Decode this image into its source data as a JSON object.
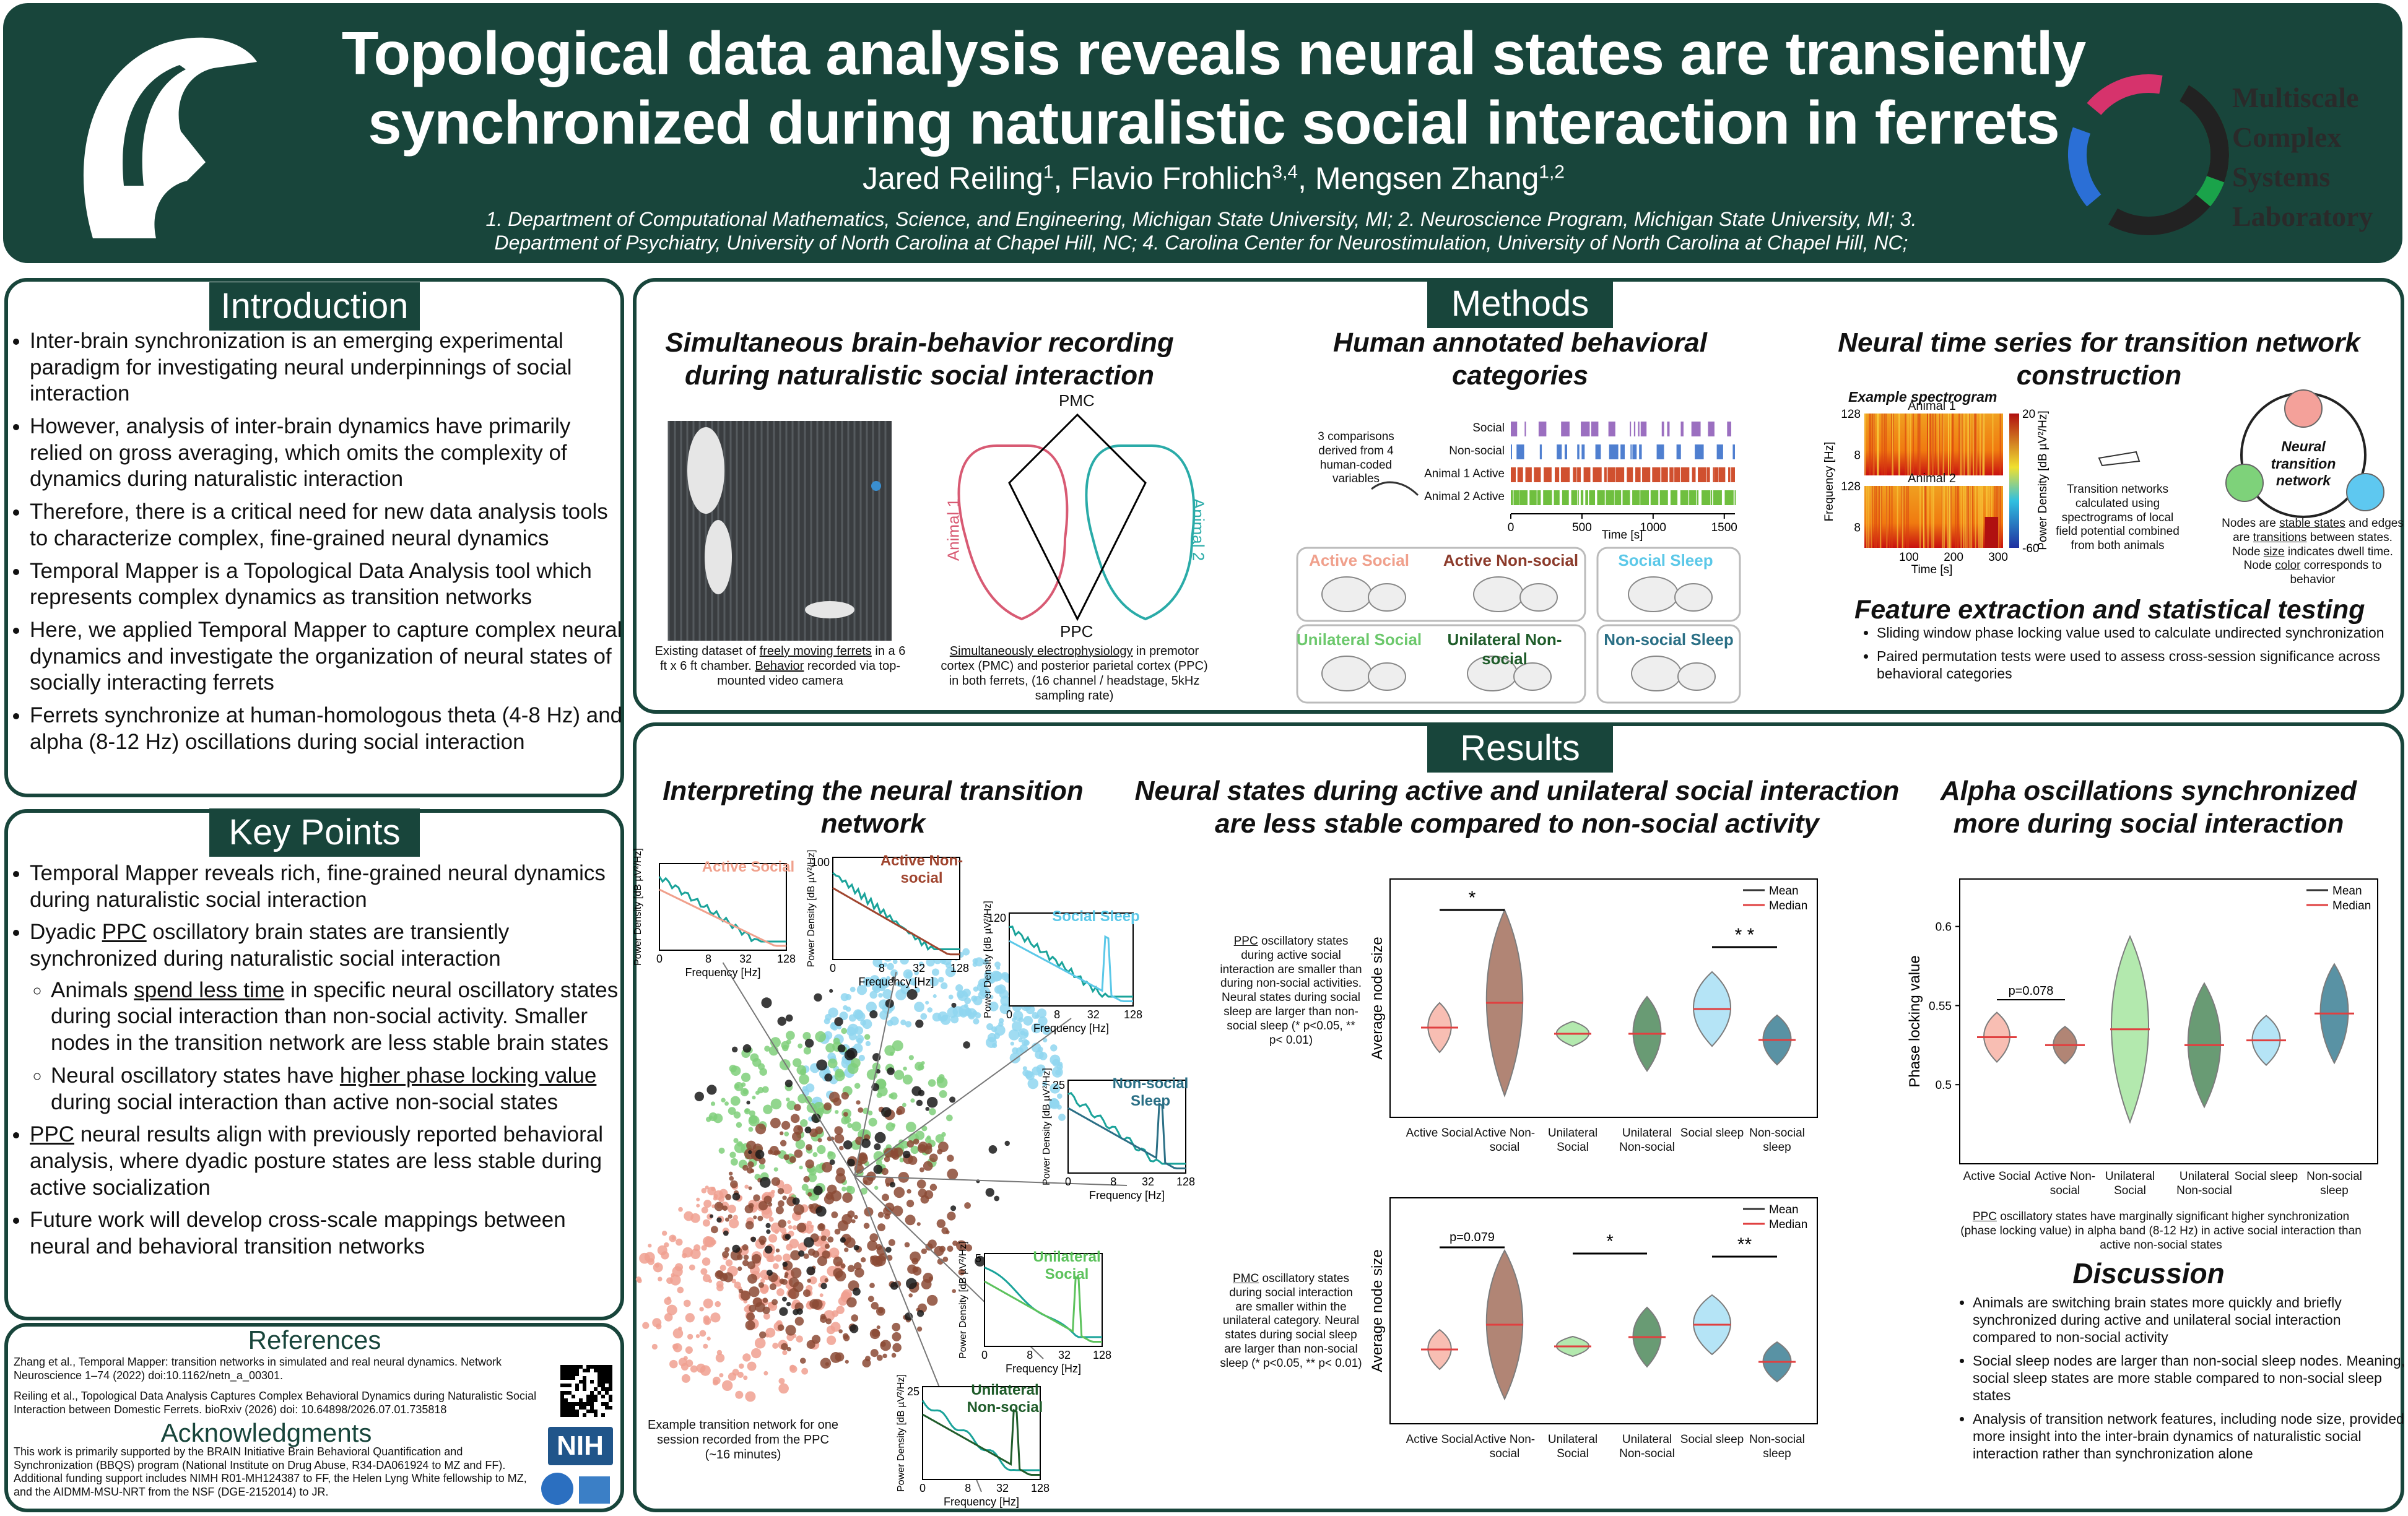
{
  "header": {
    "title_lines": [
      "Topological data analysis reveals neural states are transiently",
      "synchronized during naturalistic social interaction in ferrets"
    ],
    "authors": [
      {
        "name": "Jared Reiling",
        "sup": "1",
        "sep": ", "
      },
      {
        "name": "Flavio Frohlich",
        "sup": "3,4",
        "sep": ", "
      },
      {
        "name": "Mengsen Zhang",
        "sup": "1,2"
      }
    ],
    "affiliations": "1. Department of Computational Mathematics, Science, and Engineering, Michigan State University, MI;  2. Neuroscience Program, Michigan State University, MI; 3. Department of Psychiatry, University of North Carolina at Chapel Hill, NC; 4. Carolina Center for Neurostimulation, University of North Carolina at Chapel Hill, NC;",
    "lab": [
      "Multiscale",
      "Complex",
      "Systems",
      "Laboratory"
    ]
  },
  "introduction": {
    "heading": "Introduction",
    "bullets": [
      "Inter-brain synchronization is an emerging experimental paradigm for investigating neural underpinnings of social interaction",
      "However, analysis of inter-brain dynamics have primarily relied on gross averaging, which omits the complexity of dynamics during naturalistic interaction",
      "Therefore, there is a critical need for new data analysis tools to characterize complex, fine-grained neural dynamics",
      "Temporal Mapper is a Topological Data Analysis tool which represents complex dynamics as transition networks",
      "Here, we applied Temporal Mapper to capture complex neural dynamics and investigate the organization of neural states of socially interacting ferrets",
      "Ferrets synchronize at human-homologous theta (4-8 Hz) and alpha (8-12 Hz) oscillations during social interaction"
    ]
  },
  "key_points": {
    "heading": "Key Points",
    "items": [
      {
        "parts": [
          "Temporal Mapper reveals rich, fine-grained neural dynamics during naturalistic social interaction"
        ]
      },
      {
        "parts": [
          "Dyadic ",
          {
            "u": "PPC"
          },
          " oscillatory brain states are transiently synchronized during naturalistic social interaction"
        ],
        "sub": [
          [
            "Animals ",
            {
              "u": "spend less time"
            },
            " in specific neural oscillatory states during social interaction than non-social activity. Smaller nodes in the transition network are less stable brain states"
          ],
          [
            "Neural oscillatory states have ",
            {
              "u": "higher phase locking value"
            },
            " during social interaction than active non-social states"
          ]
        ]
      },
      {
        "parts": [
          {
            "u": "PPC"
          },
          " neural results align with previously reported behavioral analysis, where dyadic posture states are less stable during active socialization"
        ]
      },
      {
        "parts": [
          "Future work will develop cross-scale mappings between neural and behavioral transition networks"
        ]
      }
    ]
  },
  "references": {
    "heading": "References",
    "items": [
      "Zhang et al., Temporal Mapper: transition networks in simulated and real neural dynamics. Network Neuroscience 1–74 (2022) doi:10.1162/netn_a_00301.",
      "Reiling et al., Topological Data Analysis Captures Complex Behavioral Dynamics during Naturalistic Social Interaction between Domestic Ferrets. bioRxiv (2026) doi: 10.64898/2026.07.01.735818"
    ]
  },
  "acknowledgments": {
    "heading": "Acknowledgments",
    "text": "This work is primarily supported by the BRAIN Initiative Brain Behavioral Quantification and Synchronization (BBQS) program (National Institute on Drug Abuse, R34-DA061924 to MZ and FF). Additional funding support includes NIMH R01-MH124387 to FF, the Helen Lyng White fellowship to MZ, and the AIDMM-MSU-NRT from the NSF (DGE-2152014) to JR.",
    "logo": "NIH"
  },
  "methods": {
    "heading": "Methods",
    "recording": {
      "title": "Simultaneous brain-behavior recording during naturalistic social interaction",
      "photo_caption": [
        "Existing dataset of ",
        {
          "u": "freely moving ferrets"
        },
        " in a 6 ft x 6 ft chamber. ",
        {
          "u": "Behavior"
        },
        " recorded via top-mounted video camera"
      ],
      "brain_labels": {
        "top": "PMC",
        "bottom": "PPC",
        "left": "Animal 1",
        "right": "Animal 2"
      },
      "brain_caption": [
        {
          "u": "Simultaneously electrophysiology"
        },
        " in premotor cortex (PMC) and posterior parietal cortex (PPC) in both ferrets, (16 channel / headstage, 5kHz sampling rate)"
      ]
    },
    "behavior": {
      "title": "Human annotated behavioral categories",
      "note": "3 comparisons derived from 4 human-coded variables",
      "rows": [
        "Social",
        "Non-social",
        "Animal 1 Active",
        "Animal 2 Active"
      ],
      "row_colors": [
        "#9b6fc0",
        "#4f7fd0",
        "#d0502f",
        "#6fbf3f"
      ],
      "xlim": [
        0,
        1575
      ],
      "xticks": [
        0,
        500,
        1000,
        1500
      ],
      "xlabel": "Time [s]",
      "categories": [
        {
          "label": "Active Social",
          "color": "#f0a08c"
        },
        {
          "label": "Active Non-social",
          "color": "#8b3a2a"
        },
        {
          "label": "Social Sleep",
          "color": "#5bc8e8"
        },
        {
          "label": "Unilateral Social",
          "color": "#6cc86c"
        },
        {
          "label": "Unilateral Non-social",
          "color": "#1f5c2a"
        },
        {
          "label": "Non-social Sleep",
          "color": "#2a6f85"
        }
      ]
    },
    "timeseries": {
      "title": "Neural time series for transition network construction",
      "spectrogram_title": "Example spectrogram",
      "animals": [
        "Animal 1",
        "Animal 2"
      ],
      "ylim": [
        2,
        128
      ],
      "yticks": [
        8,
        128
      ],
      "ylabel": "Frequency [Hz]",
      "xlim": [
        0,
        311
      ],
      "xticks": [
        100,
        200,
        300
      ],
      "xlabel": "Time [s]",
      "clim": [
        -60,
        20
      ],
      "cticks": [
        -60,
        20
      ],
      "colorbar_label": "Power Density [dB µV²/Hz]",
      "transition_note": "Transition networks calculated using spectrograms of local field potential combined from both animals",
      "network_label": "Neural transition network",
      "network_caption": [
        "Nodes are ",
        {
          "u": "stable states"
        },
        " and edges are ",
        {
          "u": "transitions"
        },
        " between states. Node ",
        {
          "u": "size"
        },
        " indicates dwell time. Node ",
        {
          "u": "color"
        },
        " corresponds to behavior"
      ]
    },
    "features": {
      "title": "Feature extraction and statistical testing",
      "bullets": [
        "Sliding window phase locking value used to calculate undirected synchronization",
        "Paired permutation tests were used to assess cross-session significance across behavioral categories"
      ]
    }
  },
  "results": {
    "heading": "Results",
    "categories": [
      "Active Social",
      "Active Non-social",
      "Unilateral Social",
      "Unilateral Non-social",
      "Social sleep",
      "Non-social sleep"
    ],
    "category_colors": [
      "#f7b3a6",
      "#a4705e",
      "#a6e6a0",
      "#4f8a5c",
      "#a9e0f5",
      "#3d7f95"
    ],
    "legend": [
      "Mean",
      "Median"
    ],
    "legend_colors": [
      "#333333",
      "#e04040"
    ],
    "network": {
      "title": "Interpreting the neural transition network",
      "caption": "Example transition network for one session recorded from the PPC (~16 minutes)",
      "xlabel": "Frequency [Hz]",
      "ylabel": "Power Density [dB µV²/Hz]",
      "xticks": [
        0,
        8,
        32,
        128
      ],
      "insets": [
        {
          "label": "Active Social",
          "color": "#f0a08c"
        },
        {
          "label": "Active Non-social",
          "color": "#a0452f",
          "ytick": 100
        },
        {
          "label": "Social Sleep",
          "color": "#5bc8e8",
          "ytick": 120
        },
        {
          "label": "Non-social Sleep",
          "color": "#2a6f85",
          "ytick": 25
        },
        {
          "label": "Unilateral Social",
          "color": "#5cc25c",
          "ytick": 5
        },
        {
          "label": "Unilateral Non-social",
          "color": "#1f5c2a",
          "ytick": 25
        }
      ]
    },
    "node_size": {
      "title": "Neural states during active and unilateral social interaction are less stable compared to non-social activity",
      "ylabel": "Average node size",
      "ppc": {
        "caption": [
          {
            "u": "PPC"
          },
          " oscillatory states during active social interaction are smaller than during non-social activities. Neural states during social sleep are larger than non-social sleep (* p<0.05, ** p< 0.01)"
        ],
        "sig": [
          "*",
          "* *"
        ]
      },
      "pmc": {
        "caption": [
          {
            "u": "PMC"
          },
          " oscillatory states during social interaction are smaller within the unilateral category. Neural states during social sleep are larger than non-social sleep (* p<0.05, ** p< 0.01)"
        ],
        "sig": [
          "p=0.079",
          "*",
          "**"
        ]
      }
    },
    "alpha": {
      "title": "Alpha oscillations synchronized more during social interaction",
      "ylabel": "Phase locking value",
      "ylim": [
        0.45,
        0.63
      ],
      "yticks": [
        0.5,
        0.55,
        0.6
      ],
      "medians": [
        0.53,
        0.525,
        0.535,
        0.525,
        0.528,
        0.545
      ],
      "sig": "p=0.078",
      "caption": [
        {
          "u": "PPC"
        },
        " oscillatory states have marginally significant higher synchronization (phase locking value) in alpha band (8-12 Hz) in active social interaction than active non-social states"
      ]
    },
    "discussion": {
      "title": "Discussion",
      "bullets": [
        "Animals are switching brain states more quickly and briefly synchronized during active and unilateral social interaction compared to non-social activity",
        "Social sleep nodes are larger than non-social sleep nodes. Meaning, social sleep states are more stable compared to non-social sleep states",
        "Analysis of transition network features, including node size, provided more insight into the inter-brain dynamics of naturalistic social interaction rather than synchronization alone"
      ]
    }
  }
}
